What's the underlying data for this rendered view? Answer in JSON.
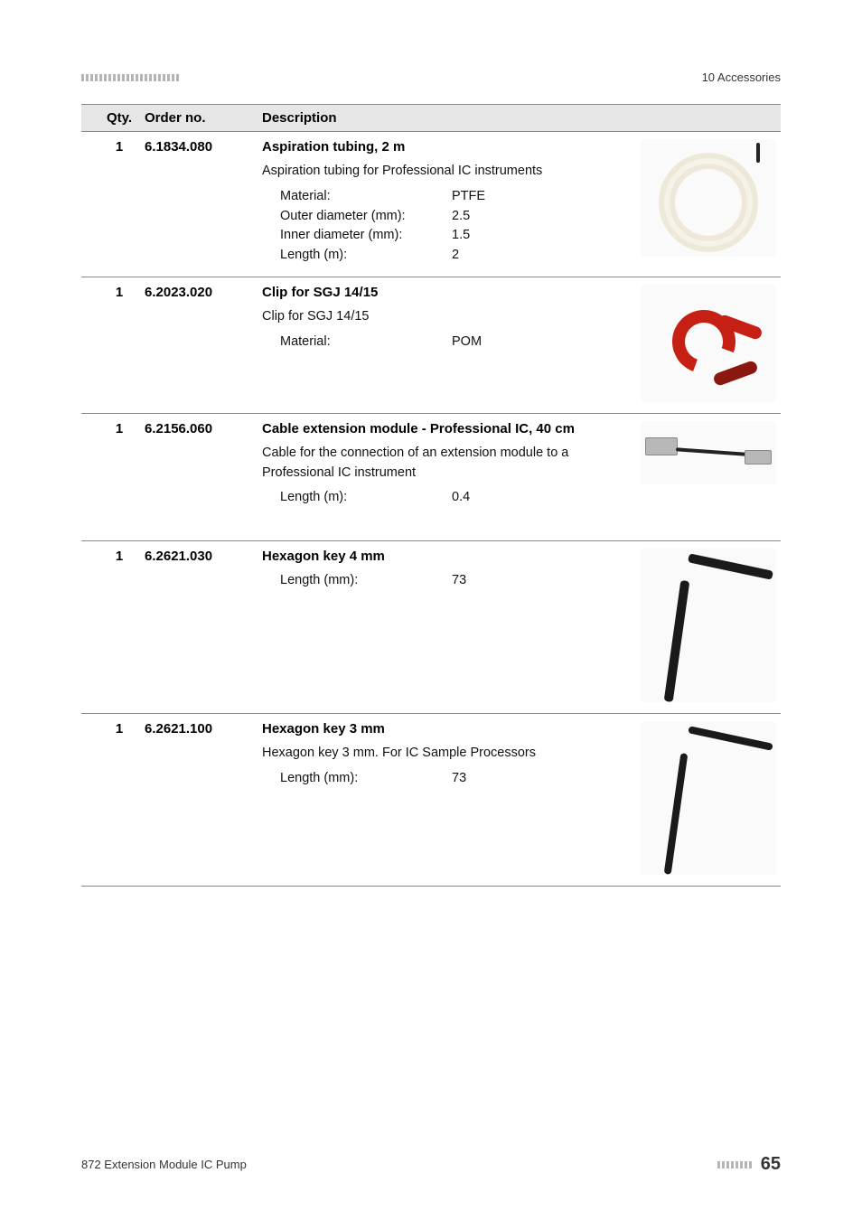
{
  "page": {
    "header_section": "10 Accessories",
    "footer_doc": "872 Extension Module IC Pump",
    "page_number": "65",
    "header_bar_color": "#b5b5b5",
    "rule_color": "#888888",
    "header_bg": "#e6e6e6"
  },
  "table": {
    "headers": {
      "qty": "Qty.",
      "order": "Order no.",
      "desc": "Description"
    }
  },
  "items": [
    {
      "qty": "1",
      "order": "6.1834.080",
      "title": "Aspiration tubing, 2 m",
      "body": "Aspiration tubing for Professional IC instruments",
      "specs": [
        {
          "label": "Material:",
          "value": "PTFE"
        },
        {
          "label": "Outer diameter (mm):",
          "value": "2.5"
        },
        {
          "label": "Inner diameter (mm):",
          "value": "1.5"
        },
        {
          "label": "Length (m):",
          "value": "2"
        }
      ],
      "image": "tubing"
    },
    {
      "qty": "1",
      "order": "6.2023.020",
      "title": "Clip for SGJ 14/15",
      "body": "Clip for SGJ 14/15",
      "specs": [
        {
          "label": "Material:",
          "value": "POM"
        }
      ],
      "image": "clip"
    },
    {
      "qty": "1",
      "order": "6.2156.060",
      "title": "Cable extension module - Professional IC, 40 cm",
      "body": "Cable for the connection of an extension module to a Professional IC instrument",
      "specs": [
        {
          "label": "Length (m):",
          "value": "0.4"
        }
      ],
      "image": "cable"
    },
    {
      "qty": "1",
      "order": "6.2621.030",
      "title": "Hexagon key 4 mm",
      "body": "",
      "specs": [
        {
          "label": "Length (mm):",
          "value": "73"
        }
      ],
      "image": "hexkey4"
    },
    {
      "qty": "1",
      "order": "6.2621.100",
      "title": "Hexagon key 3 mm",
      "body": "Hexagon key 3 mm. For IC Sample Processors",
      "specs": [
        {
          "label": "Length (mm):",
          "value": "73"
        }
      ],
      "image": "hexkey3"
    }
  ]
}
